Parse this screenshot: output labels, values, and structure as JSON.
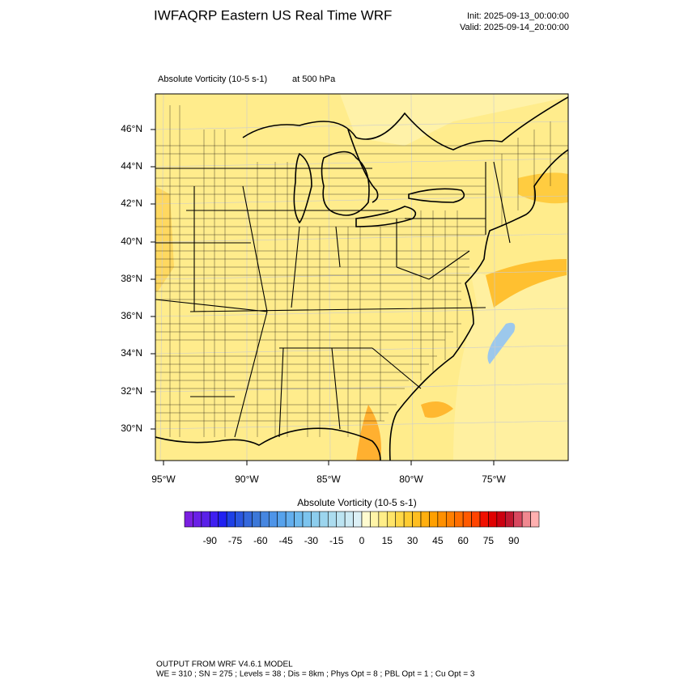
{
  "header": {
    "title": "IWFAQRP Eastern US Real Time WRF",
    "init": "Init: 2025-09-13_00:00:00",
    "valid": "Valid: 2025-09-14_20:00:00"
  },
  "map": {
    "field": "Absolute Vorticity   (10-5 s-1)",
    "level": "at   500 hPa",
    "lat_labels": [
      "46°N",
      "44°N",
      "42°N",
      "40°N",
      "38°N",
      "36°N",
      "34°N",
      "32°N",
      "30°N"
    ],
    "lon_labels": [
      "95°W",
      "90°W",
      "85°W",
      "80°W",
      "75°W"
    ]
  },
  "colorbar": {
    "title": "Absolute Vorticity  (10-5 s-1)",
    "range": [
      -105,
      105
    ],
    "ticks": [
      -90,
      -75,
      -60,
      -45,
      -30,
      -15,
      0,
      15,
      30,
      45,
      60,
      75,
      90
    ],
    "colors": [
      "#7a1fe0",
      "#6a1fe6",
      "#5a20e8",
      "#3f1ff0",
      "#2020f2",
      "#1e40e6",
      "#2a56e0",
      "#3468dc",
      "#3c78d8",
      "#4686e0",
      "#4e94e8",
      "#56a2ec",
      "#62aeee",
      "#6ebaee",
      "#7cc4ee",
      "#8ccded",
      "#9cd5ee",
      "#acdcef",
      "#bce4f2",
      "#cceaf4",
      "#dcf0f6",
      "#fffbd0",
      "#fff5a8",
      "#ffee88",
      "#ffe468",
      "#ffd848",
      "#ffcc30",
      "#ffbe20",
      "#ffaf10",
      "#ffa000",
      "#ff9000",
      "#ff8000",
      "#ff6e00",
      "#ff5a00",
      "#ff4400",
      "#f01000",
      "#e00000",
      "#cc0010",
      "#c01830",
      "#d84860",
      "#f08890",
      "#ffb0b0"
    ]
  },
  "footer": {
    "line1": "OUTPUT FROM WRF V4.6.1 MODEL",
    "line2": "WE = 310 ; SN = 275 ; Levels = 38 ; Dis = 8km ; Phys Opt = 8 ; PBL Opt = 1 ; Cu Opt = 3"
  }
}
